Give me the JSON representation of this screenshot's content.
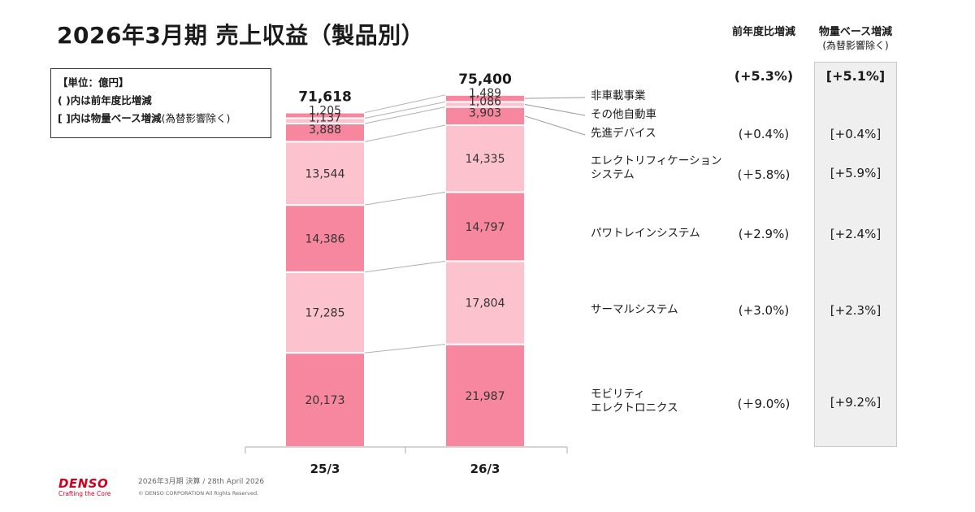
{
  "title": "2026年3月期 売上収益（製品別）",
  "header": {
    "yoy_label": "前年度比増減",
    "volume_label": "物量ベース増減",
    "volume_sub": "(為替影響除く)"
  },
  "unit_box": {
    "line1": "【単位：億円】",
    "line2": "( )内は前年度比増減",
    "line3_a": "[ ]内は物量ベース増減",
    "line3_b": "(為替影響除く)"
  },
  "chart_data": {
    "type": "bar",
    "stacked": true,
    "title": "2026年3月期 売上収益（製品別）",
    "unit": "億円",
    "categories": [
      "25/3",
      "26/3"
    ],
    "totals": [
      71618,
      75400
    ],
    "totals_labels": [
      "71,618",
      "75,400"
    ],
    "series": [
      {
        "name": "モビリティエレクトロニクス",
        "name_lines": [
          "モビリティ",
          "エレクトロニクス"
        ],
        "values": [
          20173,
          21987
        ],
        "labels": [
          "20,173",
          "21,987"
        ],
        "color": "#f7879e",
        "yoy": "(＋9.0%)",
        "volume": "[+9.2%]"
      },
      {
        "name": "サーマルシステム",
        "name_lines": [
          "サーマルシステム"
        ],
        "values": [
          17285,
          17804
        ],
        "labels": [
          "17,285",
          "17,804"
        ],
        "color": "#fcc3cf",
        "yoy": "(+3.0%)",
        "volume": "[+2.3%]"
      },
      {
        "name": "パワトレインシステム",
        "name_lines": [
          "パワトレインシステム"
        ],
        "values": [
          14386,
          14797
        ],
        "labels": [
          "14,386",
          "14,797"
        ],
        "color": "#f7879e",
        "yoy": "(+2.9%)",
        "volume": "[+2.4%]"
      },
      {
        "name": "エレクトリフィケーションシステム",
        "name_lines": [
          "エレクトリフィケーション",
          "システム"
        ],
        "values": [
          13544,
          14335
        ],
        "labels": [
          "13,544",
          "14,335"
        ],
        "color": "#fcc3cf",
        "yoy": "(＋5.8%)",
        "volume": "[+5.9%]"
      },
      {
        "name": "先進デバイス",
        "name_lines": [
          "先進デバイス"
        ],
        "values": [
          3888,
          3903
        ],
        "labels": [
          "3,888",
          "3,903"
        ],
        "color": "#f7879e",
        "yoy": "(+0.4%)",
        "volume": "[+0.4%]"
      },
      {
        "name": "その他自動車",
        "name_lines": [
          "その他自動車"
        ],
        "values": [
          1137,
          1086
        ],
        "labels": [
          "1,137",
          "1,086"
        ],
        "color": "#fcc3cf",
        "yoy": "",
        "volume": ""
      },
      {
        "name": "非車載事業",
        "name_lines": [
          "非車載事業"
        ],
        "values": [
          1205,
          1489
        ],
        "labels": [
          "1,205",
          "1,489"
        ],
        "color": "#f7879e",
        "yoy": "",
        "volume": ""
      }
    ],
    "total_change": {
      "yoy": "(+5.3%)",
      "volume": "[+5.1%]"
    }
  },
  "footer": {
    "logo": "DENSO",
    "tagline": "Crafting the Core",
    "info": "2026年3月期 決算 / 28th April 2026",
    "copyright": "© DENSO CORPORATION All Rights Reserved."
  },
  "colors": {
    "dark_pink": "#f7879e",
    "light_pink": "#fcc3cf",
    "brand_red": "#d2001e",
    "gray_box": "#efefef"
  }
}
